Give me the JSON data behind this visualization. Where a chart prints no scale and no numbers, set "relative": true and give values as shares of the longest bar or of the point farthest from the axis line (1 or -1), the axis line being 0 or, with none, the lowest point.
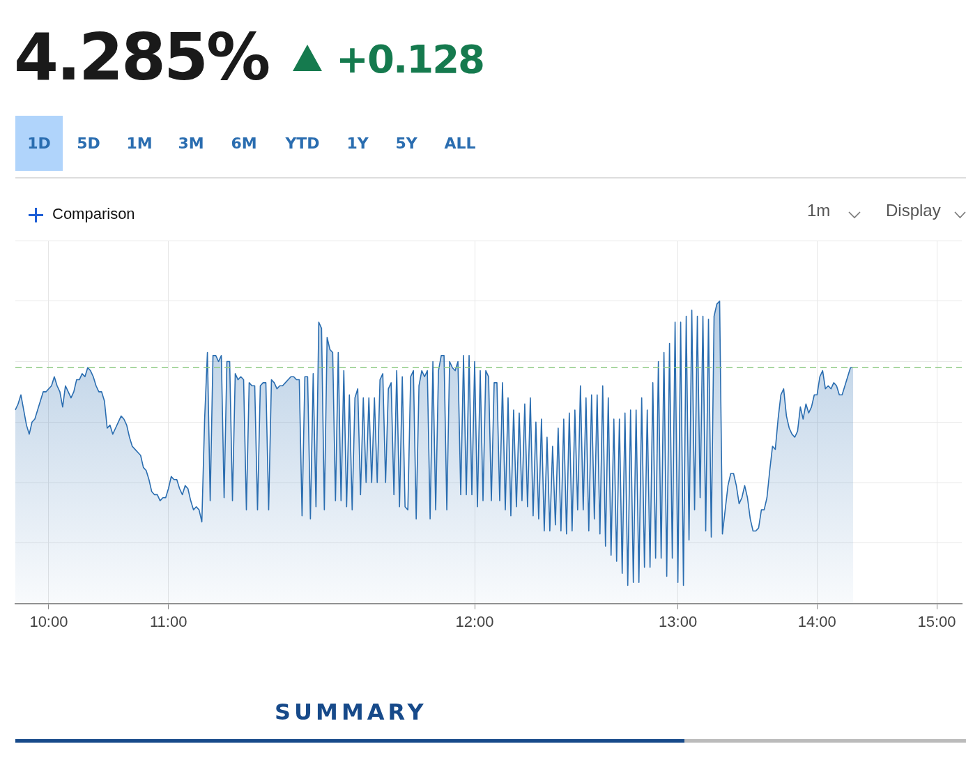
{
  "chart_data": {
    "type": "area",
    "title": "4.285%",
    "subtitle": "+0.128",
    "annotations": [
      "1D",
      "5D",
      "1M",
      "3M",
      "6M",
      "YTD",
      "1Y",
      "5Y",
      "ALL",
      "Comparison",
      "1m",
      "Display",
      "SUMMARY"
    ],
    "relative": true,
    "grid": true,
    "categories": [
      null,
      null,
      null,
      null,
      null,
      null,
      null,
      null,
      null,
      null,
      null,
      null,
      "10:00",
      null,
      null,
      null,
      null,
      null,
      null,
      null,
      null,
      null,
      null,
      null,
      null,
      null,
      null,
      null,
      null,
      null,
      null,
      null,
      null,
      null,
      null,
      null,
      null,
      null,
      null,
      null,
      null,
      null,
      null,
      null,
      null,
      null,
      null,
      null,
      null,
      null,
      null,
      null,
      null,
      null,
      null,
      "11:00",
      null,
      null,
      null,
      null,
      null,
      null,
      null,
      null,
      null,
      null,
      null,
      null,
      null,
      null,
      null,
      null,
      null,
      null,
      null,
      null,
      null,
      null,
      null,
      null,
      null,
      null,
      null,
      null,
      null,
      null,
      null,
      null,
      null,
      null,
      null,
      null,
      null,
      null,
      null,
      null,
      null,
      null,
      null,
      null,
      null,
      null,
      null,
      null,
      null,
      null,
      null,
      null,
      null,
      null,
      null,
      null,
      null,
      null,
      null,
      null,
      null,
      null,
      null,
      null,
      null,
      null,
      null,
      null,
      null,
      null,
      null,
      null,
      null,
      null,
      null,
      null,
      null,
      null,
      null,
      null,
      null,
      null,
      null,
      null,
      null,
      null,
      null,
      null,
      null,
      null,
      null,
      null,
      null,
      null,
      null,
      null,
      null,
      null,
      null,
      null,
      null,
      null,
      null,
      null,
      null,
      null,
      null,
      null,
      null,
      "12:00",
      null,
      null,
      null,
      null,
      null,
      null,
      null,
      null,
      null,
      null,
      null,
      null,
      null,
      null,
      null,
      null,
      null,
      null,
      null,
      null,
      null,
      null,
      null,
      null,
      null,
      null,
      null,
      null,
      null,
      null,
      null,
      null,
      null,
      null,
      null,
      null,
      null,
      null,
      null,
      null,
      null,
      null,
      null,
      null,
      null,
      null,
      null,
      null,
      null,
      null,
      null,
      null,
      null,
      null,
      null,
      null,
      null,
      null,
      null,
      null,
      null,
      null,
      null,
      null,
      null,
      null,
      null,
      null,
      null,
      null,
      null,
      null,
      "13:00",
      null,
      null,
      null,
      null,
      null,
      null,
      null,
      null,
      null,
      null,
      null,
      null,
      null,
      null,
      null,
      null,
      null,
      null,
      null,
      null,
      null,
      null,
      null,
      null,
      null,
      null,
      null,
      null,
      null,
      null,
      null,
      null,
      null,
      null,
      null,
      null,
      null,
      null,
      null,
      null,
      null,
      null,
      null,
      null,
      null,
      null,
      null,
      null,
      null,
      "14:00",
      null,
      null,
      null,
      null,
      null,
      null,
      null,
      null,
      null,
      null,
      null,
      null,
      null,
      null,
      null,
      null,
      null,
      null,
      null,
      null,
      null,
      null,
      null,
      null,
      null,
      null,
      null,
      null,
      null,
      null,
      null,
      null,
      null,
      null,
      null,
      null,
      null,
      null,
      null,
      null,
      null,
      null,
      "15:00",
      null,
      null,
      null,
      null,
      null,
      null,
      null,
      null,
      null
    ],
    "series": [
      {
        "color": "#2a6db0",
        "values": [
          0.64,
          0.66,
          0.69,
          0.64,
          0.59,
          0.56,
          0.6,
          0.61,
          0.64,
          0.67,
          0.7,
          0.7,
          0.71,
          0.72,
          0.75,
          0.72,
          0.7,
          0.65,
          0.72,
          0.7,
          0.68,
          0.7,
          0.74,
          0.74,
          0.76,
          0.75,
          0.78,
          0.77,
          0.75,
          0.72,
          0.7,
          0.7,
          0.67,
          0.58,
          0.59,
          0.56,
          0.58,
          0.6,
          0.62,
          0.61,
          0.59,
          0.55,
          0.52,
          0.51,
          0.5,
          0.49,
          0.45,
          0.44,
          0.41,
          0.37,
          0.36,
          0.36,
          0.34,
          0.35,
          0.35,
          0.38,
          0.42,
          0.41,
          0.41,
          0.38,
          0.36,
          0.39,
          0.38,
          0.34,
          0.31,
          0.32,
          0.31,
          0.27,
          0.61,
          0.83,
          0.34,
          0.82,
          0.82,
          0.8,
          0.82,
          0.35,
          0.8,
          0.8,
          0.34,
          0.76,
          0.74,
          0.75,
          0.74,
          0.31,
          0.73,
          0.72,
          0.72,
          0.31,
          0.72,
          0.73,
          0.73,
          0.31,
          0.74,
          0.73,
          0.71,
          0.72,
          0.72,
          0.73,
          0.74,
          0.75,
          0.75,
          0.74,
          0.74,
          0.29,
          0.75,
          0.75,
          0.28,
          0.76,
          0.32,
          0.93,
          0.91,
          0.31,
          0.88,
          0.84,
          0.83,
          0.34,
          0.83,
          0.34,
          0.77,
          0.32,
          0.69,
          0.31,
          0.68,
          0.71,
          0.36,
          0.68,
          0.4,
          0.68,
          0.4,
          0.68,
          0.4,
          0.74,
          0.76,
          0.4,
          0.71,
          0.73,
          0.36,
          0.77,
          0.32,
          0.75,
          0.32,
          0.31,
          0.75,
          0.77,
          0.28,
          0.72,
          0.77,
          0.75,
          0.77,
          0.28,
          0.8,
          0.31,
          0.77,
          0.82,
          0.82,
          0.31,
          0.8,
          0.78,
          0.77,
          0.8,
          0.36,
          0.82,
          0.36,
          0.82,
          0.36,
          0.8,
          0.32,
          0.77,
          0.34,
          0.77,
          0.75,
          0.34,
          0.73,
          0.73,
          0.34,
          0.73,
          0.31,
          0.68,
          0.29,
          0.64,
          0.32,
          0.63,
          0.34,
          0.66,
          0.32,
          0.68,
          0.29,
          0.6,
          0.28,
          0.61,
          0.24,
          0.55,
          0.24,
          0.52,
          0.26,
          0.58,
          0.24,
          0.61,
          0.23,
          0.63,
          0.24,
          0.64,
          0.31,
          0.72,
          0.31,
          0.68,
          0.24,
          0.69,
          0.28,
          0.69,
          0.23,
          0.72,
          0.19,
          0.68,
          0.16,
          0.61,
          0.14,
          0.61,
          0.1,
          0.63,
          0.06,
          0.64,
          0.07,
          0.64,
          0.07,
          0.68,
          0.12,
          0.64,
          0.12,
          0.73,
          0.15,
          0.8,
          0.15,
          0.83,
          0.09,
          0.86,
          0.15,
          0.93,
          0.07,
          0.93,
          0.06,
          0.95,
          0.21,
          0.97,
          0.31,
          0.95,
          0.35,
          0.95,
          0.24,
          0.94,
          0.22,
          0.95,
          0.99,
          1,
          0.23,
          0.31,
          0.39,
          0.43,
          0.43,
          0.39,
          0.33,
          0.35,
          0.39,
          0.35,
          0.28,
          0.24,
          0.24,
          0.25,
          0.31,
          0.31,
          0.35,
          0.44,
          0.52,
          0.51,
          0.61,
          0.69,
          0.71,
          0.62,
          0.58,
          0.56,
          0.55,
          0.57,
          0.65,
          0.61,
          0.66,
          0.63,
          0.65,
          0.69,
          0.69,
          0.75,
          0.77,
          0.71,
          0.72,
          0.71,
          0.73,
          0.72,
          0.69,
          0.69,
          0.72,
          0.75,
          0.78,
          0.78,
          null,
          null,
          null,
          null,
          null,
          null,
          null,
          null,
          null,
          null,
          null,
          null,
          null,
          null,
          null,
          null,
          null,
          null,
          null,
          null,
          null,
          null,
          null,
          null,
          null,
          null,
          null,
          null,
          null,
          null,
          null,
          null,
          null,
          null,
          null,
          null,
          null,
          null,
          null
        ]
      }
    ],
    "ref_lines": [
      {
        "axis": "y",
        "value": 0.78,
        "color": "#8fcb85",
        "line_style": "dashed"
      }
    ]
  }
}
